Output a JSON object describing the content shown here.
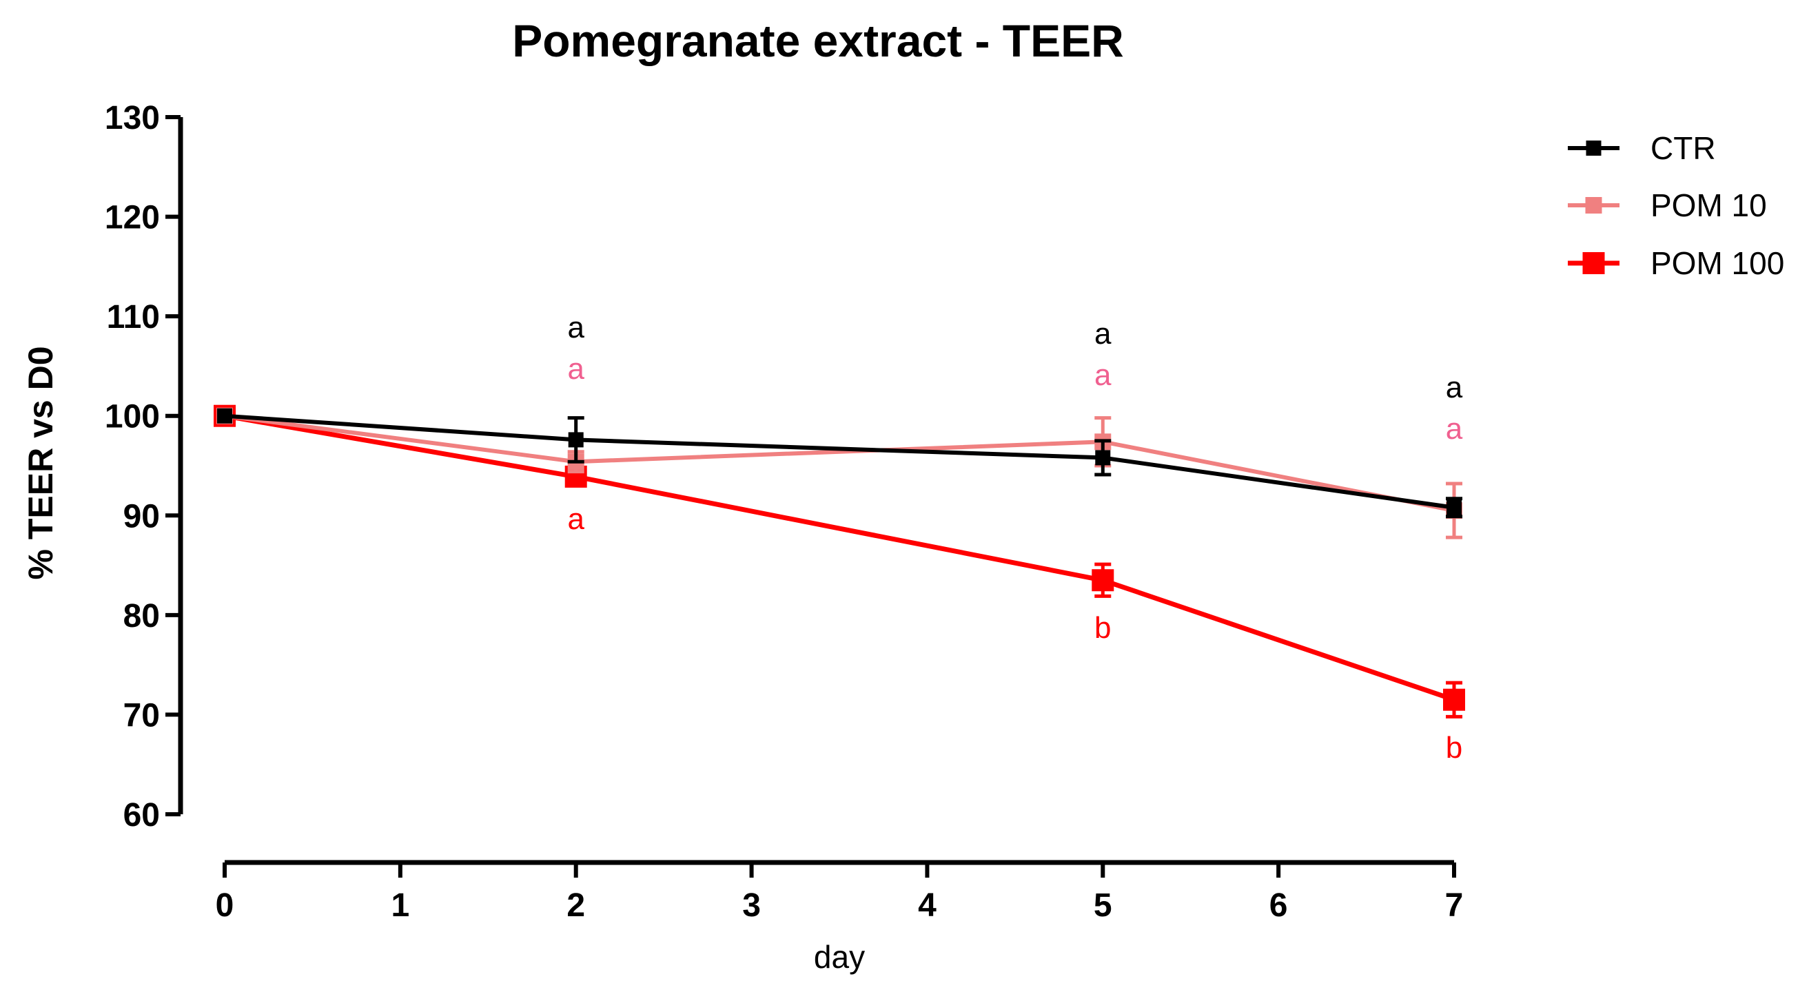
{
  "chart_data": {
    "type": "line",
    "title": "Pomegranate extract - TEER",
    "xlabel": "day",
    "ylabel": "% TEER vs D0",
    "xlim": [
      0,
      7
    ],
    "ylim": [
      60,
      130
    ],
    "xticks": [
      0,
      1,
      2,
      3,
      4,
      5,
      6,
      7
    ],
    "yticks": [
      60,
      70,
      80,
      90,
      100,
      110,
      120,
      130
    ],
    "grid": false,
    "legend_position": "top-right",
    "series": [
      {
        "name": "CTR",
        "color": "#000000",
        "x": [
          0,
          2,
          5,
          7
        ],
        "y": [
          100,
          97.6,
          95.8,
          90.8
        ],
        "error": [
          0,
          2.2,
          1.7,
          0.9
        ],
        "annotations": [
          "",
          "a",
          "a",
          "a"
        ]
      },
      {
        "name": "POM 10",
        "color": "#F08080",
        "x": [
          0,
          2,
          5,
          7
        ],
        "y": [
          100,
          95.4,
          97.4,
          90.5
        ],
        "error": [
          0,
          1.0,
          2.4,
          2.7
        ],
        "annotations": [
          "",
          "a",
          "a",
          "a"
        ]
      },
      {
        "name": "POM 100",
        "color": "#FF0000",
        "x": [
          0,
          2,
          5,
          7
        ],
        "y": [
          100,
          93.9,
          83.5,
          71.5
        ],
        "error": [
          0,
          0.8,
          1.6,
          1.7
        ],
        "annotations": [
          "",
          "a",
          "b",
          "b"
        ]
      }
    ],
    "annotation_colors": [
      "#000000",
      "#F06090",
      "#FF0000"
    ]
  }
}
